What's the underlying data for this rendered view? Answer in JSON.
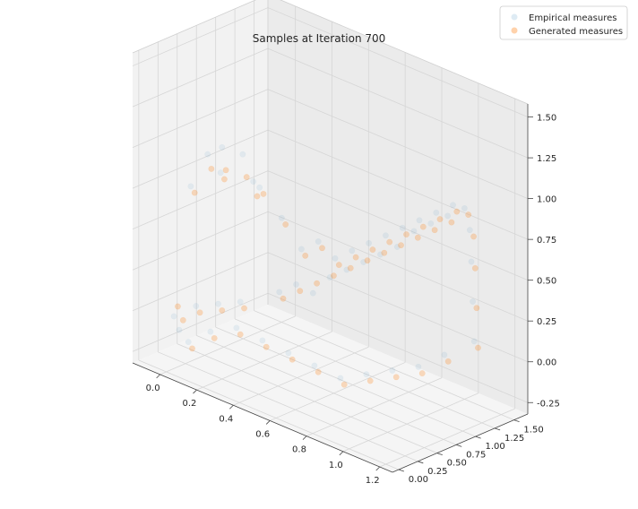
{
  "chart_data": {
    "type": "scatter",
    "title": "Samples at Iteration 700",
    "xlabel": "",
    "ylabel": "",
    "zlabel": "",
    "projection": "3d",
    "grid": true,
    "legend_position": "top-right",
    "xlim": [
      -0.15,
      1.27
    ],
    "ylim": [
      -0.08,
      1.68
    ],
    "zlim": [
      -0.32,
      1.58
    ],
    "x_ticks": [
      "0.0",
      "0.2",
      "0.4",
      "0.6",
      "0.8",
      "1.0",
      "1.2"
    ],
    "y_ticks": [
      "0.00",
      "0.25",
      "0.50",
      "0.75",
      "1.00",
      "1.25",
      "1.50"
    ],
    "z_ticks": [
      "-0.25",
      "0.00",
      "0.25",
      "0.50",
      "0.75",
      "1.00",
      "1.25",
      "1.50"
    ],
    "series": [
      {
        "name": "Empirical measures",
        "color": "#1f77b4",
        "alpha": 0.08,
        "marker": "circle",
        "points": [
          [
            0.05,
            0.2,
            0.8
          ],
          [
            0.1,
            0.3,
            1.0
          ],
          [
            0.2,
            0.25,
            1.1
          ],
          [
            0.15,
            0.35,
            0.9
          ],
          [
            0.25,
            0.4,
            1.05
          ],
          [
            0.3,
            0.5,
            0.85
          ],
          [
            0.35,
            0.3,
            0.95
          ],
          [
            0.4,
            0.55,
            0.7
          ],
          [
            0.0,
            0.1,
            0.0
          ],
          [
            0.05,
            0.05,
            -0.05
          ],
          [
            0.1,
            0.15,
            0.1
          ],
          [
            0.2,
            0.2,
            0.15
          ],
          [
            0.3,
            0.25,
            0.2
          ],
          [
            0.45,
            0.4,
            0.3
          ],
          [
            0.5,
            0.5,
            0.35
          ],
          [
            0.55,
            0.6,
            0.3
          ],
          [
            0.6,
            0.7,
            0.4
          ],
          [
            0.65,
            0.8,
            0.45
          ],
          [
            0.7,
            0.9,
            0.5
          ],
          [
            0.75,
            1.0,
            0.55
          ],
          [
            0.8,
            1.1,
            0.6
          ],
          [
            0.85,
            1.2,
            0.7
          ],
          [
            0.9,
            1.3,
            0.75
          ],
          [
            0.95,
            1.4,
            0.8
          ],
          [
            1.0,
            1.5,
            0.85
          ],
          [
            1.05,
            1.45,
            0.75
          ],
          [
            1.1,
            1.35,
            0.6
          ],
          [
            1.15,
            1.25,
            0.4
          ],
          [
            1.2,
            1.15,
            0.2
          ],
          [
            1.1,
            1.0,
            0.1
          ],
          [
            1.0,
            0.9,
            0.0
          ],
          [
            0.9,
            0.8,
            -0.05
          ],
          [
            0.8,
            0.7,
            -0.1
          ],
          [
            0.7,
            0.6,
            -0.15
          ],
          [
            0.6,
            0.5,
            -0.1
          ],
          [
            0.5,
            0.4,
            -0.05
          ],
          [
            0.4,
            0.3,
            0.0
          ],
          [
            0.3,
            0.2,
            0.05
          ],
          [
            0.2,
            0.1,
            0.0
          ],
          [
            0.1,
            0.05,
            -0.1
          ],
          [
            0.55,
            0.45,
            0.6
          ],
          [
            0.6,
            0.55,
            0.65
          ],
          [
            0.65,
            0.65,
            0.55
          ],
          [
            0.7,
            0.75,
            0.6
          ],
          [
            0.75,
            0.85,
            0.65
          ],
          [
            0.8,
            0.95,
            0.7
          ],
          [
            0.85,
            1.05,
            0.75
          ],
          [
            0.9,
            1.15,
            0.8
          ],
          [
            0.95,
            1.25,
            0.85
          ],
          [
            1.0,
            1.35,
            0.9
          ]
        ]
      },
      {
        "name": "Generated measures",
        "color": "#ff7f0e",
        "alpha": 0.25,
        "marker": "circle",
        "points": [
          [
            0.05,
            0.25,
            0.75
          ],
          [
            0.1,
            0.35,
            0.9
          ],
          [
            0.2,
            0.3,
            0.95
          ],
          [
            0.15,
            0.4,
            0.85
          ],
          [
            0.25,
            0.45,
            0.9
          ],
          [
            0.3,
            0.55,
            0.8
          ],
          [
            0.35,
            0.35,
            0.85
          ],
          [
            0.4,
            0.6,
            0.65
          ],
          [
            0.0,
            0.15,
            0.05
          ],
          [
            0.05,
            0.1,
            0.0
          ],
          [
            0.1,
            0.2,
            0.05
          ],
          [
            0.2,
            0.25,
            0.1
          ],
          [
            0.3,
            0.3,
            0.15
          ],
          [
            0.45,
            0.45,
            0.25
          ],
          [
            0.5,
            0.55,
            0.3
          ],
          [
            0.55,
            0.65,
            0.35
          ],
          [
            0.6,
            0.75,
            0.4
          ],
          [
            0.65,
            0.85,
            0.45
          ],
          [
            0.7,
            0.95,
            0.5
          ],
          [
            0.75,
            1.05,
            0.55
          ],
          [
            0.8,
            1.15,
            0.6
          ],
          [
            0.85,
            1.25,
            0.65
          ],
          [
            0.9,
            1.35,
            0.7
          ],
          [
            0.95,
            1.45,
            0.75
          ],
          [
            1.0,
            1.55,
            0.8
          ],
          [
            1.05,
            1.5,
            0.7
          ],
          [
            1.1,
            1.4,
            0.55
          ],
          [
            1.15,
            1.3,
            0.35
          ],
          [
            1.2,
            1.2,
            0.15
          ],
          [
            1.1,
            1.05,
            0.05
          ],
          [
            1.0,
            0.95,
            -0.05
          ],
          [
            0.9,
            0.85,
            -0.1
          ],
          [
            0.8,
            0.75,
            -0.15
          ],
          [
            0.7,
            0.65,
            -0.2
          ],
          [
            0.6,
            0.55,
            -0.15
          ],
          [
            0.5,
            0.45,
            -0.1
          ],
          [
            0.4,
            0.35,
            -0.05
          ],
          [
            0.3,
            0.25,
            0.0
          ],
          [
            0.2,
            0.15,
            -0.05
          ],
          [
            0.1,
            0.1,
            -0.15
          ],
          [
            0.55,
            0.5,
            0.55
          ],
          [
            0.6,
            0.6,
            0.6
          ],
          [
            0.65,
            0.7,
            0.5
          ],
          [
            0.7,
            0.8,
            0.55
          ],
          [
            0.75,
            0.9,
            0.6
          ],
          [
            0.8,
            1.0,
            0.65
          ],
          [
            0.85,
            1.1,
            0.7
          ],
          [
            0.9,
            1.2,
            0.75
          ],
          [
            0.95,
            1.3,
            0.8
          ],
          [
            1.0,
            1.4,
            0.85
          ]
        ]
      }
    ]
  }
}
